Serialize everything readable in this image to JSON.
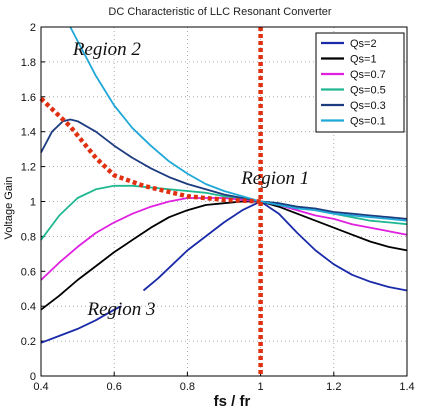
{
  "chart_data": {
    "type": "line",
    "title": "DC Characteristic of LLC Resonant Converter",
    "xlabel": "fs / fr",
    "ylabel": "Voltage Gain",
    "xlim": [
      0.4,
      1.4
    ],
    "ylim": [
      0,
      2
    ],
    "xticks": [
      "0.4",
      "0.6",
      "0.8",
      "1",
      "1.2",
      "1.4"
    ],
    "yticks": [
      "0",
      "0.2",
      "0.4",
      "0.6",
      "0.8",
      "1",
      "1.2",
      "1.4",
      "1.6",
      "1.8",
      "2"
    ],
    "grid": true,
    "legend_position": "top-right",
    "series": [
      {
        "name": "Qs=2",
        "color": "#1a2aa8",
        "segments": [
          [
            [
              0.4,
              0.19
            ],
            [
              0.45,
              0.23
            ],
            [
              0.5,
              0.27
            ],
            [
              0.55,
              0.32
            ],
            [
              0.6,
              0.38
            ],
            [
              0.62,
              0.4
            ]
          ],
          [
            [
              0.68,
              0.49
            ],
            [
              0.72,
              0.56
            ],
            [
              0.76,
              0.64
            ],
            [
              0.8,
              0.72
            ],
            [
              0.85,
              0.8
            ],
            [
              0.9,
              0.88
            ],
            [
              0.95,
              0.95
            ],
            [
              1.0,
              1.0
            ],
            [
              1.05,
              0.93
            ],
            [
              1.1,
              0.82
            ],
            [
              1.15,
              0.72
            ],
            [
              1.2,
              0.64
            ],
            [
              1.25,
              0.58
            ],
            [
              1.3,
              0.54
            ],
            [
              1.35,
              0.51
            ],
            [
              1.4,
              0.49
            ]
          ]
        ]
      },
      {
        "name": "Qs=1",
        "color": "#000000",
        "segments": [
          [
            [
              0.4,
              0.38
            ],
            [
              0.45,
              0.46
            ],
            [
              0.5,
              0.55
            ],
            [
              0.55,
              0.63
            ],
            [
              0.6,
              0.71
            ],
            [
              0.65,
              0.78
            ],
            [
              0.7,
              0.85
            ],
            [
              0.75,
              0.91
            ],
            [
              0.8,
              0.95
            ],
            [
              0.85,
              0.98
            ],
            [
              0.9,
              0.99
            ],
            [
              0.95,
              1.0
            ],
            [
              1.0,
              1.0
            ],
            [
              1.05,
              0.97
            ],
            [
              1.1,
              0.93
            ],
            [
              1.15,
              0.89
            ],
            [
              1.2,
              0.85
            ],
            [
              1.25,
              0.81
            ],
            [
              1.3,
              0.77
            ],
            [
              1.35,
              0.74
            ],
            [
              1.4,
              0.72
            ]
          ]
        ]
      },
      {
        "name": "Qs=0.7",
        "color": "#e020e0",
        "segments": [
          [
            [
              0.4,
              0.55
            ],
            [
              0.45,
              0.65
            ],
            [
              0.5,
              0.74
            ],
            [
              0.55,
              0.82
            ],
            [
              0.6,
              0.88
            ],
            [
              0.65,
              0.93
            ],
            [
              0.7,
              0.97
            ],
            [
              0.75,
              1.0
            ],
            [
              0.8,
              1.02
            ],
            [
              0.85,
              1.02
            ],
            [
              0.9,
              1.02
            ],
            [
              0.95,
              1.01
            ],
            [
              1.0,
              1.0
            ],
            [
              1.05,
              0.98
            ],
            [
              1.1,
              0.95
            ],
            [
              1.15,
              0.92
            ],
            [
              1.2,
              0.9
            ],
            [
              1.25,
              0.87
            ],
            [
              1.3,
              0.85
            ],
            [
              1.35,
              0.83
            ],
            [
              1.4,
              0.81
            ]
          ]
        ]
      },
      {
        "name": "Qs=0.5",
        "color": "#20b890",
        "segments": [
          [
            [
              0.4,
              0.78
            ],
            [
              0.45,
              0.92
            ],
            [
              0.5,
              1.02
            ],
            [
              0.55,
              1.07
            ],
            [
              0.6,
              1.09
            ],
            [
              0.65,
              1.09
            ],
            [
              0.7,
              1.08
            ],
            [
              0.75,
              1.07
            ],
            [
              0.8,
              1.06
            ],
            [
              0.85,
              1.05
            ],
            [
              0.9,
              1.03
            ],
            [
              0.95,
              1.02
            ],
            [
              1.0,
              1.0
            ],
            [
              1.05,
              0.99
            ],
            [
              1.1,
              0.97
            ],
            [
              1.15,
              0.95
            ],
            [
              1.2,
              0.93
            ],
            [
              1.25,
              0.91
            ],
            [
              1.3,
              0.89
            ],
            [
              1.35,
              0.88
            ],
            [
              1.4,
              0.87
            ]
          ]
        ]
      },
      {
        "name": "Qs=0.3",
        "color": "#1c3c80",
        "segments": [
          [
            [
              0.4,
              1.28
            ],
            [
              0.43,
              1.4
            ],
            [
              0.46,
              1.46
            ],
            [
              0.48,
              1.47
            ],
            [
              0.5,
              1.46
            ],
            [
              0.55,
              1.4
            ],
            [
              0.6,
              1.32
            ],
            [
              0.65,
              1.25
            ],
            [
              0.7,
              1.19
            ],
            [
              0.75,
              1.14
            ],
            [
              0.8,
              1.1
            ],
            [
              0.85,
              1.07
            ],
            [
              0.9,
              1.04
            ],
            [
              0.95,
              1.02
            ],
            [
              1.0,
              1.0
            ],
            [
              1.05,
              0.99
            ],
            [
              1.1,
              0.97
            ],
            [
              1.15,
              0.96
            ],
            [
              1.2,
              0.94
            ],
            [
              1.25,
              0.93
            ],
            [
              1.3,
              0.92
            ],
            [
              1.35,
              0.91
            ],
            [
              1.4,
              0.9
            ]
          ]
        ]
      },
      {
        "name": "Qs=0.1",
        "color": "#20a8d8",
        "segments": [
          [
            [
              0.48,
              2.0
            ],
            [
              0.5,
              1.92
            ],
            [
              0.55,
              1.72
            ],
            [
              0.6,
              1.55
            ],
            [
              0.65,
              1.42
            ],
            [
              0.7,
              1.32
            ],
            [
              0.75,
              1.23
            ],
            [
              0.8,
              1.16
            ],
            [
              0.85,
              1.1
            ],
            [
              0.9,
              1.06
            ],
            [
              0.95,
              1.03
            ],
            [
              1.0,
              1.0
            ],
            [
              1.05,
              0.98
            ],
            [
              1.1,
              0.96
            ],
            [
              1.15,
              0.95
            ],
            [
              1.2,
              0.93
            ],
            [
              1.25,
              0.92
            ],
            [
              1.3,
              0.91
            ],
            [
              1.35,
              0.9
            ],
            [
              1.4,
              0.89
            ]
          ]
        ]
      }
    ],
    "boundary_lines": [
      {
        "color": "#e03010",
        "style": "dotted",
        "points": [
          [
            0.4,
            1.59
          ],
          [
            0.48,
            1.43
          ],
          [
            0.55,
            1.25
          ],
          [
            0.6,
            1.15
          ],
          [
            0.68,
            1.09
          ],
          [
            0.8,
            1.03
          ],
          [
            0.9,
            1.01
          ],
          [
            1.0,
            1.0
          ]
        ]
      },
      {
        "color": "#e03010",
        "style": "dotted",
        "points": [
          [
            1.0,
            2.0
          ],
          [
            1.0,
            0.0
          ]
        ]
      }
    ],
    "annotations": [
      {
        "text": "Region 2",
        "x": 0.58,
        "y": 1.84
      },
      {
        "text": "Region 1",
        "x": 1.04,
        "y": 1.1
      },
      {
        "text": "Region 3",
        "x": 0.62,
        "y": 0.35
      }
    ]
  }
}
